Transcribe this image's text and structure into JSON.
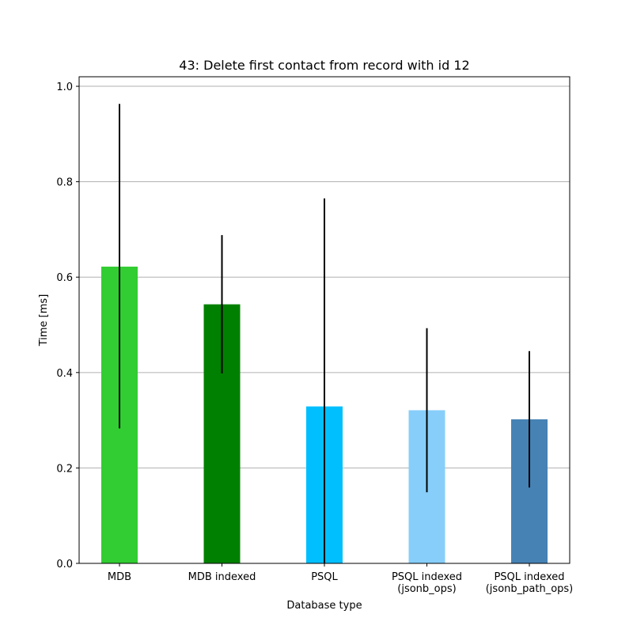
{
  "chart_data": {
    "type": "bar",
    "title": "43: Delete first contact from record with id 12",
    "xlabel": "Database type",
    "ylabel": "Time [ms]",
    "ylim": [
      0.0,
      1.02
    ],
    "yticks": [
      "0.0",
      "0.2",
      "0.4",
      "0.6",
      "0.8",
      "1.0"
    ],
    "grid": "horizontal",
    "categories": [
      [
        "MDB"
      ],
      [
        "MDB indexed"
      ],
      [
        "PSQL"
      ],
      [
        "PSQL indexed",
        "(jsonb_ops)"
      ],
      [
        "PSQL indexed",
        "(jsonb_path_ops)"
      ]
    ],
    "values": [
      0.622,
      0.543,
      0.329,
      0.321,
      0.302
    ],
    "error_low": [
      0.283,
      0.398,
      0.0,
      0.149,
      0.159
    ],
    "error_high": [
      0.963,
      0.688,
      0.765,
      0.493,
      0.445
    ],
    "colors": [
      "#32cd32",
      "#008000",
      "#00bfff",
      "#87cefa",
      "#4682b4"
    ]
  }
}
